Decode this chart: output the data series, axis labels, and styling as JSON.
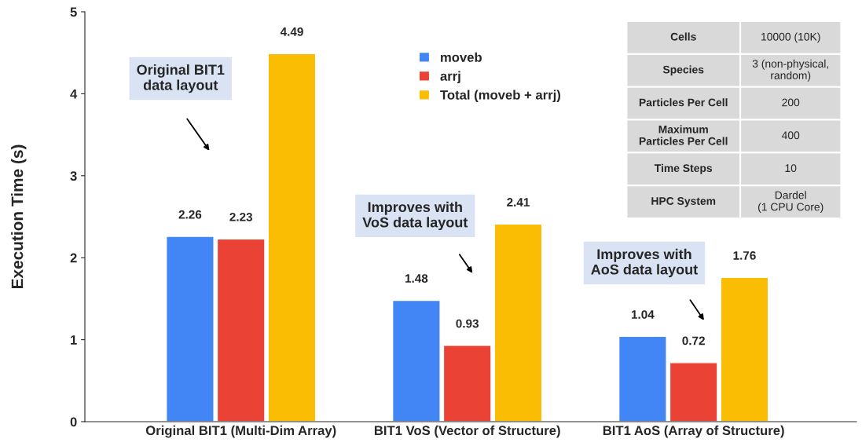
{
  "chart_data": {
    "type": "bar",
    "ylabel": "Execution Time (s)",
    "categories": [
      "Original BIT1 (Multi-Dim Array)",
      "BIT1 VoS (Vector of Structure)",
      "BIT1 AoS (Array of Structure)"
    ],
    "series": [
      {
        "name": "moveb",
        "color": "#4285f4",
        "values": [
          2.26,
          1.48,
          1.04
        ]
      },
      {
        "name": "arrj",
        "color": "#ea4335",
        "values": [
          2.23,
          0.93,
          0.72
        ]
      },
      {
        "name": "Total (moveb + arrj)",
        "color": "#fbbc04",
        "values": [
          4.49,
          2.41,
          1.76
        ]
      }
    ],
    "ylim": [
      0,
      5
    ],
    "yticks": [
      0,
      1,
      2,
      3,
      4,
      5
    ],
    "data_labels": true,
    "grid": false,
    "legend": "top",
    "annotations": [
      "Original BIT1\ndata layout",
      "Improves with\nVoS data layout",
      "Improves with\nAoS data layout",
      "Cells",
      "10000 (10K)",
      "Species",
      "3 (non-physical,\nrandom)",
      "Particles Per Cell",
      "200",
      "Maximum\nParticles Per Cell",
      "400",
      "Time Steps",
      "10",
      "HPC System",
      "Dardel\n(1 CPU Core)"
    ]
  }
}
